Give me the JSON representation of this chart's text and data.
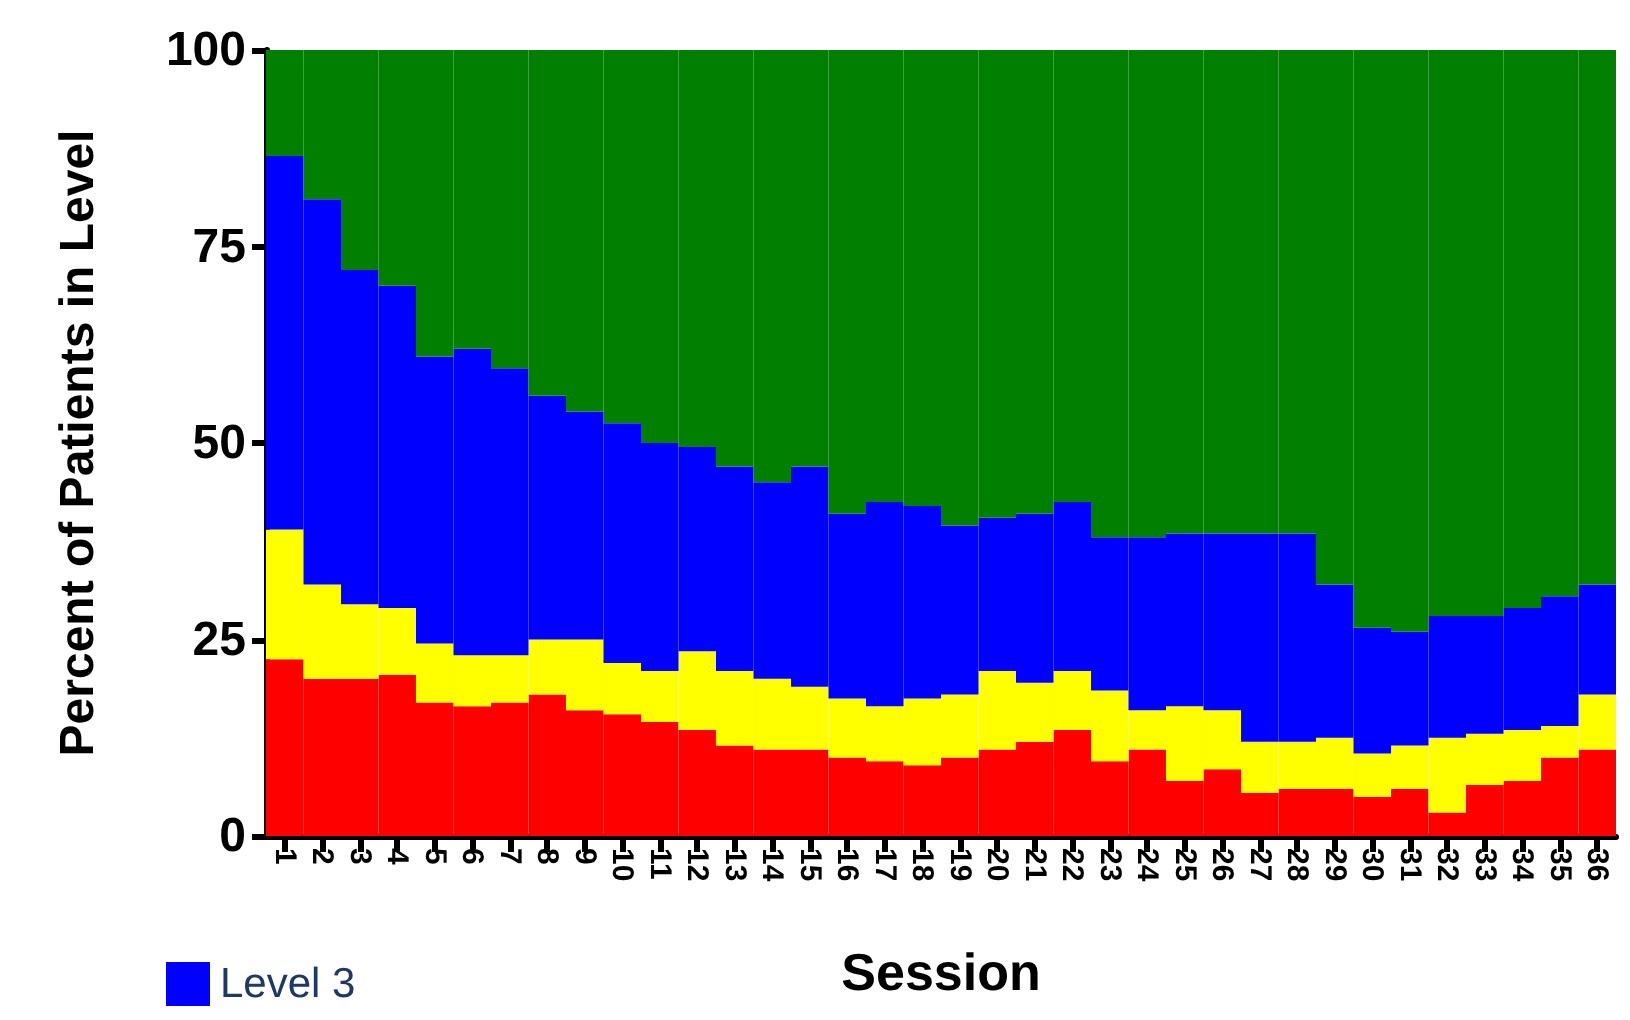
{
  "chart_data": {
    "type": "bar",
    "stacked": true,
    "xlabel": "Session",
    "ylabel": "Percent of Patients in Level",
    "categories": [
      "1",
      "2",
      "3",
      "4",
      "5",
      "6",
      "7",
      "8",
      "9",
      "10",
      "11",
      "12",
      "13",
      "14",
      "15",
      "16",
      "17",
      "18",
      "19",
      "20",
      "21",
      "22",
      "23",
      "24",
      "25",
      "26",
      "27",
      "28",
      "29",
      "30",
      "31",
      "32",
      "33",
      "34",
      "35",
      "36"
    ],
    "series": [
      {
        "color": "#ff0000",
        "values": [
          22.5,
          20,
          20,
          20.5,
          17,
          16.5,
          17,
          18,
          16,
          15.5,
          14.5,
          13.5,
          11.5,
          11,
          11,
          10,
          9.5,
          9,
          10,
          11,
          12,
          13.5,
          9.5,
          11,
          7,
          8.5,
          5.5,
          6,
          6,
          5,
          6,
          3,
          6.5,
          7,
          10,
          11
        ]
      },
      {
        "color": "#ffff00",
        "values": [
          16.5,
          12,
          9.5,
          8.5,
          7.5,
          6.5,
          6,
          7,
          9,
          6.5,
          6.5,
          10,
          9.5,
          9,
          8,
          7.5,
          7,
          8.5,
          8,
          10,
          7.5,
          7.5,
          9,
          5,
          9.5,
          7.5,
          6.5,
          6,
          6.5,
          5.5,
          5.5,
          9.5,
          6.5,
          6.5,
          4,
          7
        ]
      },
      {
        "name": "Level 3",
        "color": "#0000ff",
        "values": [
          47.5,
          49,
          42.5,
          41,
          36.5,
          39,
          36.5,
          31,
          29,
          30.5,
          29,
          26,
          26,
          25,
          28,
          23.5,
          26,
          24.5,
          21.5,
          19.5,
          21.5,
          21.5,
          19.5,
          22,
          22,
          22.5,
          26.5,
          26.5,
          19.5,
          16,
          14.5,
          15.5,
          15,
          15.5,
          16.5,
          14
        ]
      },
      {
        "color": "#007f00",
        "values": [
          13.5,
          19,
          28,
          30,
          39,
          38,
          40.5,
          44,
          46,
          47.5,
          50,
          50.5,
          53,
          55,
          53,
          59,
          57.5,
          58,
          60.5,
          59.5,
          59,
          57.5,
          62,
          62,
          61.5,
          61.5,
          61.5,
          61.5,
          68,
          73.5,
          74,
          72,
          72,
          71,
          69.5,
          68
        ]
      }
    ],
    "ylim": [
      0,
      100
    ],
    "yticks": [
      0,
      25,
      50,
      75,
      100
    ],
    "grid": false,
    "legend": "bottom left"
  }
}
